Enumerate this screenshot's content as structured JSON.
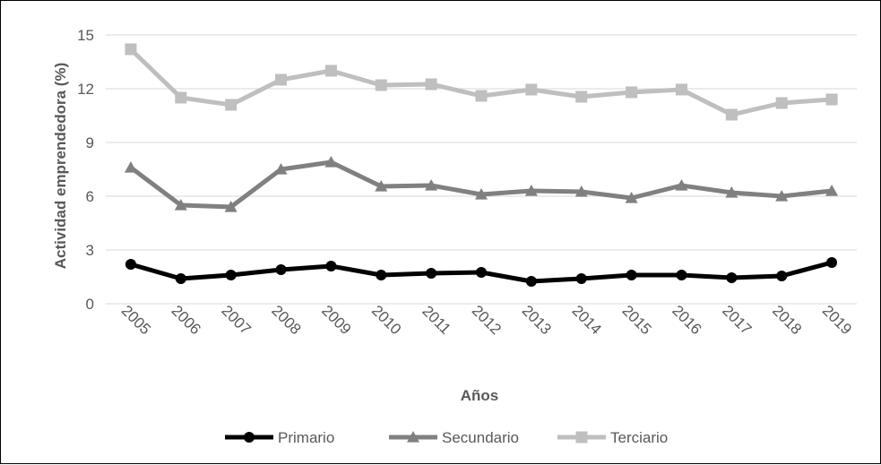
{
  "chart_data": {
    "type": "line",
    "title": "",
    "xlabel": "Años",
    "ylabel": "Actividad emprendedora (%)",
    "ylim": [
      0,
      15
    ],
    "yticks": [
      0,
      3,
      6,
      9,
      12,
      15
    ],
    "grid": "horizontal",
    "legend_position": "bottom",
    "categories": [
      "2005",
      "2006",
      "2007",
      "2008",
      "2009",
      "2010",
      "2011",
      "2012",
      "2013",
      "2014",
      "2015",
      "2016",
      "2017",
      "2018",
      "2019"
    ],
    "series": [
      {
        "name": "Primario",
        "marker": "circle",
        "color": "#000000",
        "values": [
          2.2,
          1.4,
          1.6,
          1.9,
          2.1,
          1.6,
          1.7,
          1.75,
          1.25,
          1.4,
          1.6,
          1.6,
          1.45,
          1.55,
          2.3
        ]
      },
      {
        "name": "Secundario",
        "marker": "triangle",
        "color": "#808080",
        "values": [
          7.6,
          5.5,
          5.4,
          7.5,
          7.9,
          6.55,
          6.6,
          6.1,
          6.3,
          6.25,
          5.9,
          6.6,
          6.2,
          6.0,
          6.3
        ]
      },
      {
        "name": "Terciario",
        "marker": "square",
        "color": "#bfbfbf",
        "values": [
          14.2,
          11.5,
          11.1,
          12.5,
          13.0,
          12.2,
          12.25,
          11.6,
          11.95,
          11.55,
          11.8,
          11.95,
          10.55,
          11.2,
          11.4
        ]
      }
    ]
  }
}
